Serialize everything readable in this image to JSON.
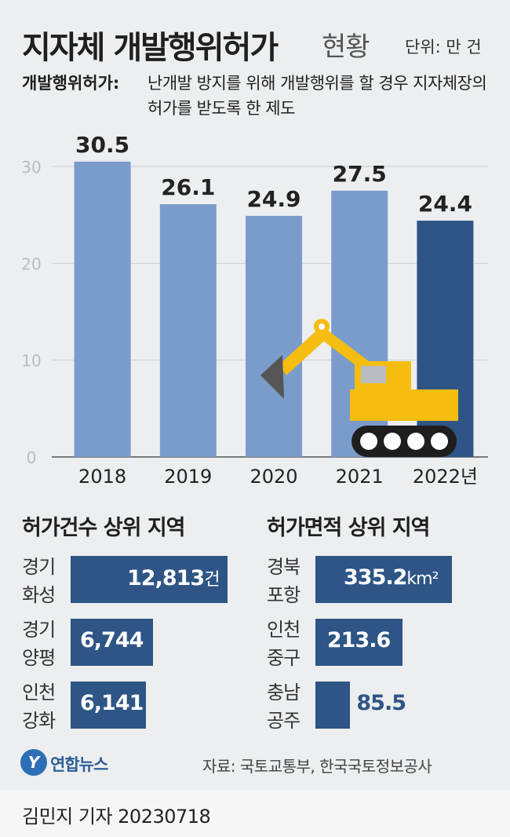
{
  "header": {
    "title": "지자체 개발행위허가",
    "title_suffix": "현황",
    "unit": "단위: 만 건"
  },
  "definition": {
    "label": "개발행위허가:",
    "text": "난개발 방지를 위해 개발행위를 할 경우 지자체장의 허가를 받도록 한 제도"
  },
  "chart_data": [
    {
      "type": "bar",
      "categories": [
        "2018",
        "2019",
        "2020",
        "2021",
        "2022년"
      ],
      "values": [
        30.5,
        26.1,
        24.9,
        27.5,
        24.4
      ],
      "value_labels": [
        "30.5",
        "26.1",
        "24.9",
        "27.5",
        "24.4"
      ],
      "y_ticks": [
        "0",
        "10",
        "20",
        "30"
      ],
      "ylim": [
        0,
        30
      ],
      "grid": true,
      "colors": [
        "#7a9ccb",
        "#7a9ccb",
        "#7a9ccb",
        "#7a9ccb",
        "#2e5585"
      ]
    },
    {
      "type": "bar",
      "orientation": "horizontal",
      "title": "허가건수 상위 지역",
      "categories": [
        "경기 화성",
        "경기 양평",
        "인천 강화"
      ],
      "values": [
        12813,
        6744,
        6141
      ],
      "value_labels": [
        "12,813",
        "6,744",
        "6,141"
      ],
      "unit": "건",
      "color": "#2e5585"
    },
    {
      "type": "bar",
      "orientation": "horizontal",
      "title": "허가면적 상위 지역",
      "categories": [
        "경북 포항",
        "인천 중구",
        "충남 공주"
      ],
      "values": [
        335.2,
        213.6,
        85.5
      ],
      "value_labels": [
        "335.2",
        "213.6",
        "85.5"
      ],
      "unit": "km²",
      "color": "#2e5585"
    }
  ],
  "left_panel": {
    "title": "허가건수 상위 지역",
    "unit": "건",
    "rows": [
      {
        "name_1": "경기",
        "name_2": "화성",
        "value": "12,813"
      },
      {
        "name_1": "경기",
        "name_2": "양평",
        "value": "6,744"
      },
      {
        "name_1": "인천",
        "name_2": "강화",
        "value": "6,141"
      }
    ]
  },
  "right_panel": {
    "title": "허가면적 상위 지역",
    "unit": "km²",
    "rows": [
      {
        "name_1": "경북",
        "name_2": "포항",
        "value": "335.2"
      },
      {
        "name_1": "인천",
        "name_2": "중구",
        "value": "213.6"
      },
      {
        "name_1": "충남",
        "name_2": "공주",
        "value": "85.5"
      }
    ]
  },
  "footer": {
    "logo_mark": "Y",
    "logo_text": "연합뉴스",
    "source": "자료: 국토교통부, 한국국토정보공사",
    "byline": "김민지 기자  20230718"
  },
  "illustration": {
    "icon": "excavator-icon",
    "body_color": "#f5bd0f",
    "bucket_color": "#555555"
  }
}
